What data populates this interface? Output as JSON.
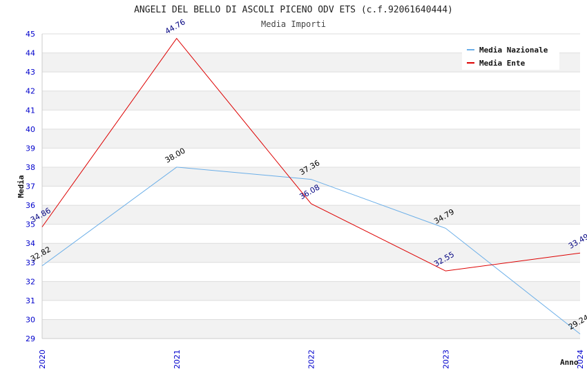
{
  "chart_data": {
    "type": "line",
    "title": "ANGELI DEL BELLO DI ASCOLI PICENO ODV ETS (c.f.92061640444)",
    "subtitle": "Media Importi",
    "xlabel": "Anno",
    "ylabel": "Media",
    "ylim": [
      29,
      45
    ],
    "yticks": [
      "29",
      "30",
      "31",
      "32",
      "33",
      "34",
      "35",
      "36",
      "37",
      "38",
      "39",
      "40",
      "41",
      "42",
      "43",
      "44",
      "45"
    ],
    "categories": [
      "2020",
      "2021",
      "2022",
      "2023",
      "2024"
    ],
    "grid": true,
    "legend_position": "top-right",
    "series": [
      {
        "name": "Media Nazionale",
        "color": "#6aaee8",
        "label_color": "#000000",
        "values": [
          32.82,
          38.0,
          37.36,
          34.79,
          29.24
        ],
        "labels": [
          "32.82",
          "38.00",
          "37.36",
          "34.79",
          "29.24"
        ]
      },
      {
        "name": "Media Ente",
        "color": "#dd0000",
        "label_color": "#000080",
        "values": [
          34.86,
          44.76,
          36.08,
          32.55,
          33.49
        ],
        "labels": [
          "34.86",
          "44.76",
          "36.08",
          "32.55",
          "33.49"
        ]
      }
    ]
  }
}
